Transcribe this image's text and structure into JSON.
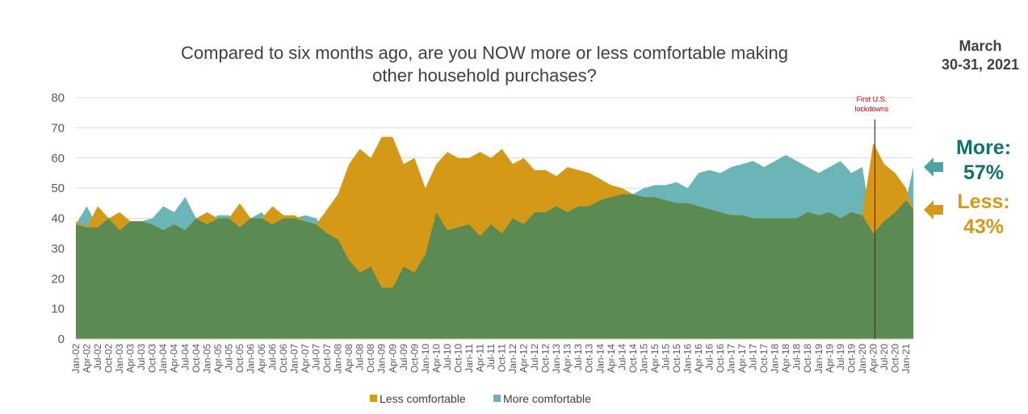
{
  "title": {
    "line1": "Compared to six months ago, are you NOW more or less comfortable making",
    "line2": "other household purchases?"
  },
  "date_label": {
    "line1": "March",
    "line2": "30-31, 2021"
  },
  "callouts": {
    "more": {
      "label": "More:",
      "value": "57%"
    },
    "less": {
      "label": "Less:",
      "value": "43%"
    }
  },
  "colors": {
    "less": "#d49a17",
    "more": "#6cb5b6",
    "overlap": "#5b8b52",
    "annotation": "#c00000"
  },
  "chart_data": {
    "type": "area",
    "title": "Compared to six months ago, are you NOW more or less comfortable making other household purchases?",
    "ylim": [
      0,
      80
    ],
    "yticks": [
      0,
      10,
      20,
      30,
      40,
      50,
      60,
      70,
      80
    ],
    "grid": true,
    "legend_position": "bottom",
    "x_range": [
      "Jan-02",
      "Mar-21"
    ],
    "tick_labels": [
      "Jan-02",
      "Apr-02",
      "Jul-02",
      "Oct-02",
      "Jan-03",
      "Apr-03",
      "Jul-03",
      "Oct-03",
      "Jan-04",
      "Apr-04",
      "Jul-04",
      "Oct-04",
      "Jan-05",
      "Apr-05",
      "Jul-05",
      "Oct-05",
      "Jan-06",
      "Apr-06",
      "Jul-06",
      "Oct-06",
      "Jan-07",
      "Apr-07",
      "Jul-07",
      "Oct-07",
      "Jan-08",
      "Apr-08",
      "Jul-08",
      "Oct-08",
      "Jan-09",
      "Apr-09",
      "Jul-09",
      "Oct-09",
      "Jan-10",
      "Apr-10",
      "Jul-10",
      "Oct-10",
      "Jan-11",
      "Apr-11",
      "Jul-11",
      "Oct-11",
      "Jan-12",
      "Apr-12",
      "Jul-12",
      "Oct-12",
      "Jan-13",
      "Apr-13",
      "Jul-13",
      "Oct-13",
      "Jan-14",
      "Apr-14",
      "Jul-14",
      "Oct-14",
      "Jan-15",
      "Apr-15",
      "Jul-15",
      "Oct-15",
      "Jan-16",
      "Apr-16",
      "Jul-16",
      "Oct-16",
      "Jan-17",
      "Apr-17",
      "Jul-17",
      "Oct-17",
      "Jan-18",
      "Apr-18",
      "Jul-18",
      "Oct-18",
      "Jan-19",
      "Apr-19",
      "Jul-19",
      "Oct-19",
      "Jan-20",
      "Apr-20",
      "Jul-20",
      "Oct-20",
      "Jan-21"
    ],
    "series": [
      {
        "name": "Less comfortable",
        "color": "#d49a17",
        "points": [
          [
            "Jan-02",
            39
          ],
          [
            "Apr-02",
            37
          ],
          [
            "Jul-02",
            44
          ],
          [
            "Oct-02",
            40
          ],
          [
            "Jan-03",
            42
          ],
          [
            "Apr-03",
            39
          ],
          [
            "Jul-03",
            39
          ],
          [
            "Oct-03",
            38
          ],
          [
            "Jan-04",
            36
          ],
          [
            "Apr-04",
            38
          ],
          [
            "Jul-04",
            36
          ],
          [
            "Oct-04",
            40
          ],
          [
            "Jan-05",
            42
          ],
          [
            "Apr-05",
            40
          ],
          [
            "Jul-05",
            40
          ],
          [
            "Oct-05",
            45
          ],
          [
            "Jan-06",
            40
          ],
          [
            "Apr-06",
            40
          ],
          [
            "Jul-06",
            44
          ],
          [
            "Oct-06",
            41
          ],
          [
            "Jan-07",
            41
          ],
          [
            "Apr-07",
            39
          ],
          [
            "Jul-07",
            38
          ],
          [
            "Oct-07",
            43
          ],
          [
            "Jan-08",
            48
          ],
          [
            "Apr-08",
            58
          ],
          [
            "Jul-08",
            63
          ],
          [
            "Oct-08",
            60
          ],
          [
            "Jan-09",
            67
          ],
          [
            "Apr-09",
            67
          ],
          [
            "Jul-09",
            58
          ],
          [
            "Oct-09",
            60
          ],
          [
            "Jan-10",
            50
          ],
          [
            "Apr-10",
            58
          ],
          [
            "Jul-10",
            62
          ],
          [
            "Oct-10",
            60
          ],
          [
            "Jan-11",
            60
          ],
          [
            "Apr-11",
            62
          ],
          [
            "Jul-11",
            60
          ],
          [
            "Oct-11",
            63
          ],
          [
            "Jan-12",
            58
          ],
          [
            "Apr-12",
            60
          ],
          [
            "Jul-12",
            56
          ],
          [
            "Oct-12",
            56
          ],
          [
            "Jan-13",
            54
          ],
          [
            "Apr-13",
            57
          ],
          [
            "Jul-13",
            56
          ],
          [
            "Oct-13",
            55
          ],
          [
            "Jan-14",
            53
          ],
          [
            "Apr-14",
            51
          ],
          [
            "Jul-14",
            50
          ],
          [
            "Oct-14",
            48
          ],
          [
            "Jan-15",
            47
          ],
          [
            "Apr-15",
            47
          ],
          [
            "Jul-15",
            46
          ],
          [
            "Oct-15",
            45
          ],
          [
            "Jan-16",
            45
          ],
          [
            "Apr-16",
            44
          ],
          [
            "Jul-16",
            43
          ],
          [
            "Oct-16",
            42
          ],
          [
            "Jan-17",
            41
          ],
          [
            "Apr-17",
            41
          ],
          [
            "Jul-17",
            40
          ],
          [
            "Oct-17",
            40
          ],
          [
            "Jan-18",
            40
          ],
          [
            "Apr-18",
            40
          ],
          [
            "Jul-18",
            40
          ],
          [
            "Oct-18",
            42
          ],
          [
            "Jan-19",
            41
          ],
          [
            "Apr-19",
            42
          ],
          [
            "Jul-19",
            40
          ],
          [
            "Oct-19",
            42
          ],
          [
            "Jan-20",
            41
          ],
          [
            "Apr-20",
            65
          ],
          [
            "Jul-20",
            58
          ],
          [
            "Oct-20",
            55
          ],
          [
            "Jan-21",
            50
          ],
          [
            "Mar-21",
            43
          ]
        ]
      },
      {
        "name": "More comfortable",
        "color": "#6cb5b6",
        "points": [
          [
            "Jan-02",
            38
          ],
          [
            "Apr-02",
            44
          ],
          [
            "Jul-02",
            37
          ],
          [
            "Oct-02",
            40
          ],
          [
            "Jan-03",
            36
          ],
          [
            "Apr-03",
            39
          ],
          [
            "Jul-03",
            39
          ],
          [
            "Oct-03",
            40
          ],
          [
            "Jan-04",
            44
          ],
          [
            "Apr-04",
            42
          ],
          [
            "Jul-04",
            47
          ],
          [
            "Oct-04",
            40
          ],
          [
            "Jan-05",
            38
          ],
          [
            "Apr-05",
            41
          ],
          [
            "Jul-05",
            41
          ],
          [
            "Oct-05",
            37
          ],
          [
            "Jan-06",
            40
          ],
          [
            "Apr-06",
            42
          ],
          [
            "Jul-06",
            38
          ],
          [
            "Oct-06",
            40
          ],
          [
            "Jan-07",
            40
          ],
          [
            "Apr-07",
            41
          ],
          [
            "Jul-07",
            40
          ],
          [
            "Oct-07",
            35
          ],
          [
            "Jan-08",
            33
          ],
          [
            "Apr-08",
            26
          ],
          [
            "Jul-08",
            22
          ],
          [
            "Oct-08",
            24
          ],
          [
            "Jan-09",
            17
          ],
          [
            "Apr-09",
            17
          ],
          [
            "Jul-09",
            24
          ],
          [
            "Oct-09",
            22
          ],
          [
            "Jan-10",
            28
          ],
          [
            "Apr-10",
            42
          ],
          [
            "Jul-10",
            36
          ],
          [
            "Oct-10",
            37
          ],
          [
            "Jan-11",
            38
          ],
          [
            "Apr-11",
            34
          ],
          [
            "Jul-11",
            38
          ],
          [
            "Oct-11",
            35
          ],
          [
            "Jan-12",
            40
          ],
          [
            "Apr-12",
            38
          ],
          [
            "Jul-12",
            42
          ],
          [
            "Oct-12",
            42
          ],
          [
            "Jan-13",
            44
          ],
          [
            "Apr-13",
            42
          ],
          [
            "Jul-13",
            44
          ],
          [
            "Oct-13",
            44
          ],
          [
            "Jan-14",
            46
          ],
          [
            "Apr-14",
            47
          ],
          [
            "Jul-14",
            48
          ],
          [
            "Oct-14",
            48
          ],
          [
            "Jan-15",
            50
          ],
          [
            "Apr-15",
            51
          ],
          [
            "Jul-15",
            51
          ],
          [
            "Oct-15",
            52
          ],
          [
            "Jan-16",
            50
          ],
          [
            "Apr-16",
            55
          ],
          [
            "Jul-16",
            56
          ],
          [
            "Oct-16",
            55
          ],
          [
            "Jan-17",
            57
          ],
          [
            "Apr-17",
            58
          ],
          [
            "Jul-17",
            59
          ],
          [
            "Oct-17",
            57
          ],
          [
            "Jan-18",
            59
          ],
          [
            "Apr-18",
            61
          ],
          [
            "Jul-18",
            59
          ],
          [
            "Oct-18",
            57
          ],
          [
            "Jan-19",
            55
          ],
          [
            "Apr-19",
            57
          ],
          [
            "Jul-19",
            59
          ],
          [
            "Oct-19",
            55
          ],
          [
            "Jan-20",
            57
          ],
          [
            "Apr-20",
            35
          ],
          [
            "Jul-20",
            39
          ],
          [
            "Oct-20",
            42
          ],
          [
            "Jan-21",
            46
          ],
          [
            "Mar-21",
            57
          ]
        ]
      }
    ],
    "annotations": [
      {
        "x": "Apr-20",
        "line1": "First U.S.",
        "line2": "lockdowns",
        "color": "#c00000"
      }
    ]
  }
}
